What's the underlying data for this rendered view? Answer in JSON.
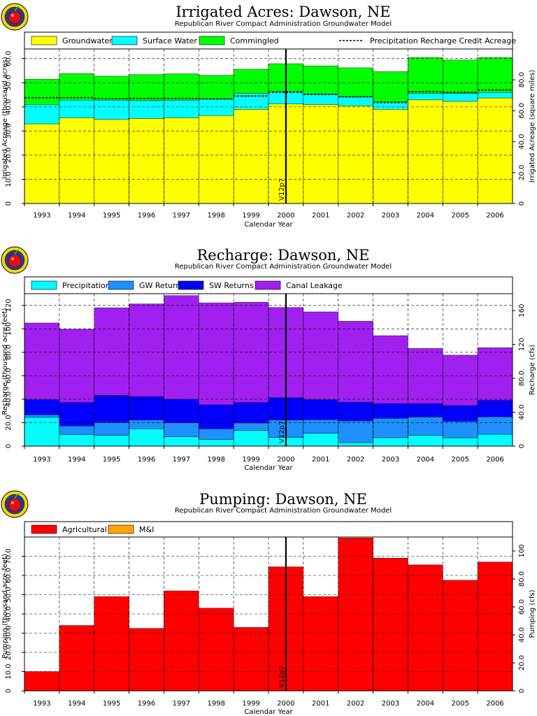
{
  "chart_data": [
    {
      "type": "bar",
      "stacked": true,
      "title": "Irrigated Acres: Dawson, NE",
      "subtitle": "Republican River Compact Administration Groundwater Model",
      "xlabel": "Calendar Year",
      "ylabel": "Irrigated Acreage (thousand acres)",
      "ylabel_right": "Irrigated Acreage (square miles)",
      "categories": [
        "1993",
        "1994",
        "1995",
        "1996",
        "1997",
        "1998",
        "1999",
        "2000",
        "2001",
        "2002",
        "2003",
        "2004",
        "2005",
        "2006"
      ],
      "ylim": [
        0,
        64
      ],
      "yticks": [
        "0",
        "10.0",
        "20.0",
        "30.0",
        "40.0",
        "50.0",
        "60.0"
      ],
      "ylim_right": [
        0,
        100
      ],
      "yticks_right": [
        "0",
        "20.0",
        "40.0",
        "60.0",
        "80.0"
      ],
      "series": [
        {
          "name": "Groundwater",
          "color": "#ffff00",
          "values": [
            33.0,
            35.5,
            34.8,
            35.2,
            35.5,
            36.4,
            39.0,
            41.2,
            41.0,
            40.5,
            39.0,
            42.9,
            42.3,
            43.7
          ]
        },
        {
          "name": "Surface Water",
          "color": "#00ffff",
          "values": [
            8.0,
            7.3,
            8.0,
            7.4,
            7.3,
            6.8,
            6.6,
            5.2,
            4.4,
            3.7,
            3.1,
            2.7,
            3.3,
            2.3
          ]
        },
        {
          "name": "Commingled",
          "color": "#00ff00",
          "values": [
            10.5,
            11.0,
            9.9,
            10.8,
            10.9,
            9.9,
            10.0,
            11.5,
            11.6,
            12.0,
            12.5,
            14.8,
            13.8,
            14.4
          ]
        }
      ],
      "precipitation_recharge_credit_acreage": [
        43.8,
        43.8,
        43.4,
        43.5,
        43.5,
        43.3,
        44.5,
        46.0,
        45.2,
        44.2,
        41.8,
        46.3,
        46.0,
        47.0
      ],
      "precipitation_line_name": "Precipitation Recharge Credit Acreage",
      "marker_label": "V12p7",
      "grid": true,
      "legend_position": "top"
    },
    {
      "type": "bar",
      "stacked": true,
      "title": "Recharge: Dawson, NE",
      "subtitle": "Republican River Compact Administration Groundwater Model",
      "xlabel": "Calendar Year",
      "ylabel": "Recharge (thousand acre-feet)",
      "ylabel_right": "Recharge (cfs)",
      "categories": [
        "1993",
        "1994",
        "1995",
        "1996",
        "1997",
        "1998",
        "1999",
        "2000",
        "2001",
        "2002",
        "2003",
        "2004",
        "2005",
        "2006"
      ],
      "ylim": [
        0,
        130
      ],
      "yticks": [
        "0",
        "20.0",
        "40.0",
        "60.0",
        "80.0",
        "100",
        "120"
      ],
      "ylim_right": [
        0,
        180
      ],
      "yticks_right": [
        "0",
        "40.0",
        "80.0",
        "120",
        "160"
      ],
      "series": [
        {
          "name": "Precipitation",
          "color": "#00ffff",
          "values": [
            24.5,
            9.7,
            9.2,
            14.8,
            7.9,
            5.7,
            13.2,
            7.3,
            11.0,
            3.0,
            7.2,
            9.3,
            7.1,
            10.0
          ]
        },
        {
          "name": "GW Returns",
          "color": "#1e90ff",
          "values": [
            2.2,
            7.5,
            11.0,
            7.5,
            12.0,
            9.0,
            6.5,
            15.0,
            11.5,
            18.5,
            16.5,
            15.5,
            14.0,
            15.0
          ]
        },
        {
          "name": "SW Returns",
          "color": "#0000ff",
          "values": [
            12.8,
            20.0,
            23.0,
            20.0,
            20.0,
            20.5,
            17.5,
            19.0,
            17.0,
            16.0,
            12.5,
            11.5,
            13.5,
            14.0
          ]
        },
        {
          "name": "Canal Leakage",
          "color": "#a020f0",
          "values": [
            65.5,
            62.5,
            74.8,
            79.0,
            88.5,
            87.0,
            85.5,
            77.0,
            75.0,
            69.0,
            58.0,
            47.0,
            43.0,
            45.0
          ]
        }
      ],
      "marker_label": "V12p7",
      "grid": true,
      "legend_position": "top"
    },
    {
      "type": "bar",
      "stacked": true,
      "title": "Pumping: Dawson, NE",
      "subtitle": "Republican River Compact Administration Groundwater Model",
      "xlabel": "Calendar Year",
      "ylabel": "Pumping (thousand acre-feet)",
      "ylabel_right": "Pumping (cfs)",
      "categories": [
        "1993",
        "1994",
        "1995",
        "1996",
        "1997",
        "1998",
        "1999",
        "2000",
        "2001",
        "2002",
        "2003",
        "2004",
        "2005",
        "2006"
      ],
      "ylim": [
        0,
        80
      ],
      "yticks": [
        "0",
        "10.0",
        "20.0",
        "30.0",
        "40.0",
        "50.0",
        "60.0",
        "70.0"
      ],
      "ylim_right": [
        0,
        110
      ],
      "yticks_right": [
        "0",
        "20.0",
        "40.0",
        "60.0",
        "80.0",
        "100"
      ],
      "series": [
        {
          "name": "Agricultural",
          "color": "#ff0000",
          "values": [
            10.0,
            34.0,
            49.0,
            32.5,
            52.0,
            43.0,
            33.0,
            64.5,
            49.0,
            79.5,
            69.0,
            65.5,
            57.5,
            67.0
          ]
        },
        {
          "name": "M&I",
          "color": "#ffa500",
          "values": [
            0,
            0,
            0,
            0,
            0,
            0,
            0,
            0,
            0,
            0,
            0,
            0,
            0,
            0
          ]
        }
      ],
      "marker_label": "V12p7",
      "grid": true,
      "legend_position": "top"
    }
  ]
}
